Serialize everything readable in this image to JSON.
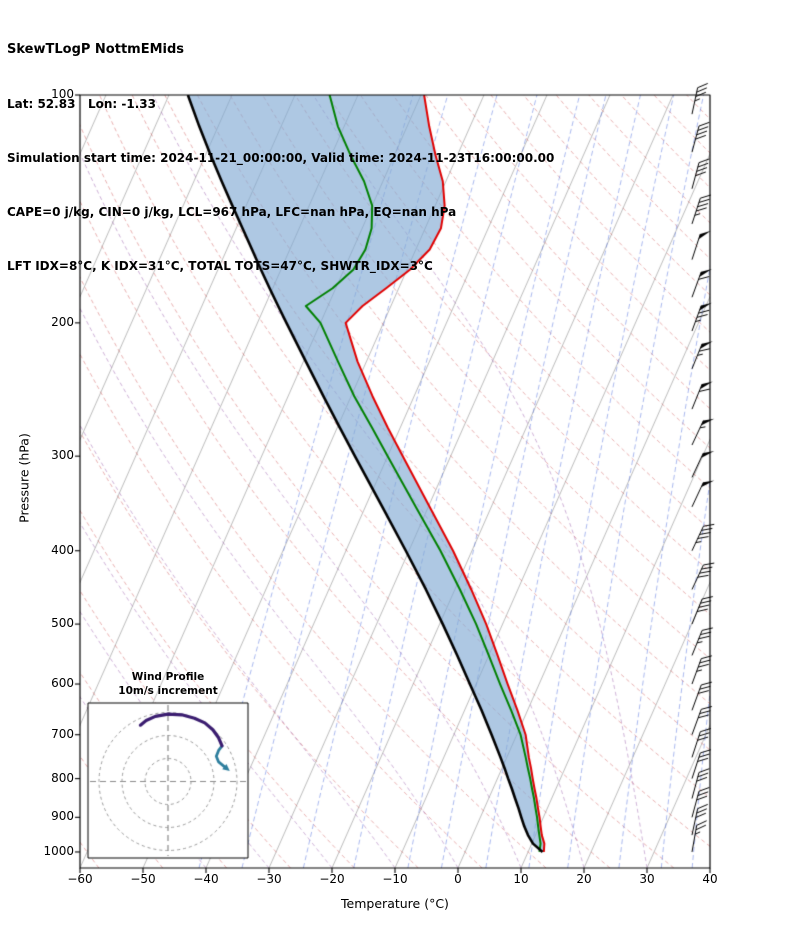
{
  "header": {
    "title": "SkewTLogP NottmEMids",
    "location": "Lat: 52.83   Lon: -1.33",
    "times": "Simulation start time: 2024-11-21_00:00:00, Valid time: 2024-11-23T16:00:00.00",
    "indices1": "CAPE=0 j/kg, CIN=0 j/kg, LCL=967 hPa, LFC=nan hPa, EQ=nan hPa",
    "indices2": "LFT IDX=8°C, K IDX=31°C, TOTAL TOTS=47°C, SHWTR_IDX=3°C"
  },
  "chart_data": {
    "type": "line",
    "subtype": "skew-t log-p sounding",
    "xlabel": "Temperature (°C)",
    "ylabel": "Pressure (hPa)",
    "xlim": [
      -60,
      40
    ],
    "p_top": 100,
    "p_bottom": 1050,
    "skew_c_per_decade": 53,
    "x_ticks": [
      -60,
      -50,
      -40,
      -30,
      -20,
      -10,
      0,
      10,
      20,
      30,
      40
    ],
    "y_ticks": [
      100,
      200,
      300,
      400,
      500,
      600,
      700,
      800,
      900,
      1000
    ],
    "isotherms_c": {
      "min": -150,
      "max": 40,
      "step": 10
    },
    "dry_adiabats_theta_c": {
      "min": -60,
      "max": 220,
      "step": 10
    },
    "moist_adiabat_starts_c": [
      -40,
      -30,
      -20,
      -10,
      0,
      10,
      20,
      30
    ],
    "mixing_ratios_g_kg": [
      0.1,
      0.2,
      0.5,
      1,
      2,
      3,
      5,
      8,
      12,
      20,
      30,
      40
    ],
    "sounding": {
      "pressure": [
        1000,
        975,
        950,
        925,
        900,
        875,
        850,
        825,
        800,
        775,
        750,
        700,
        650,
        600,
        550,
        500,
        450,
        400,
        350,
        300,
        275,
        250,
        225,
        200,
        190,
        180,
        170,
        160,
        150,
        140,
        130,
        120,
        110,
        100
      ],
      "temperature": [
        12.5,
        12.0,
        11.0,
        10.2,
        9.4,
        8.5,
        7.6,
        6.6,
        5.6,
        4.6,
        3.5,
        1.4,
        -1.6,
        -5.0,
        -8.6,
        -12.6,
        -17.4,
        -23.0,
        -29.8,
        -37.6,
        -42.0,
        -46.6,
        -51.4,
        -56.0,
        -54.5,
        -52.0,
        -49.5,
        -47.8,
        -47.5,
        -48.5,
        -50.5,
        -53.5,
        -56.5,
        -59.5
      ],
      "dewpoint": [
        11.8,
        11.4,
        10.6,
        9.8,
        9.0,
        8.1,
        7.2,
        6.2,
        5.2,
        4.1,
        3.0,
        0.6,
        -2.6,
        -6.2,
        -10.0,
        -14.2,
        -19.2,
        -25.0,
        -32.0,
        -40.0,
        -44.5,
        -49.5,
        -54.5,
        -60.0,
        -63.5,
        -60.5,
        -58.5,
        -58.0,
        -58.5,
        -60.0,
        -63.0,
        -67.0,
        -71.0,
        -74.5
      ],
      "parcel": [
        12.3,
        10.2,
        8.8,
        7.6,
        6.5,
        5.4,
        4.2,
        3.0,
        1.7,
        0.4,
        -1.0,
        -4.0,
        -7.3,
        -11.0,
        -15.0,
        -19.5,
        -24.6,
        -30.5,
        -37.3,
        -45.2,
        -49.6,
        -54.4,
        -59.6,
        -65.4,
        -67.9,
        -70.5,
        -73.2,
        -76.0,
        -79.0,
        -82.2,
        -85.6,
        -89.2,
        -93.0,
        -97.0
      ]
    },
    "wind_barbs": {
      "pressure": [
        1000,
        950,
        900,
        850,
        800,
        750,
        700,
        650,
        600,
        550,
        500,
        450,
        400,
        350,
        320,
        290,
        260,
        230,
        205,
        185,
        165,
        148,
        133,
        119,
        106
      ],
      "speed_kt": [
        25,
        28,
        30,
        30,
        28,
        28,
        30,
        32,
        35,
        35,
        40,
        40,
        45,
        48,
        50,
        55,
        60,
        65,
        75,
        60,
        50,
        45,
        40,
        38,
        35
      ],
      "direction_deg": [
        10,
        12,
        15,
        15,
        18,
        18,
        20,
        20,
        20,
        22,
        22,
        25,
        25,
        25,
        25,
        25,
        22,
        22,
        20,
        20,
        18,
        18,
        15,
        15,
        12
      ]
    },
    "hodograph": {
      "title": "Wind Profile",
      "subtitle": "10m/s increment",
      "rings_ms": [
        10,
        20,
        30
      ],
      "segments": [
        {
          "name": "low-level",
          "color": "#2e7f9e",
          "width": 2.8,
          "arrow_at_start": true,
          "u": [
            24.5,
            22.0,
            21.0,
            22.0,
            23.5
          ],
          "v": [
            6.5,
            8.5,
            11.0,
            13.5,
            15.5
          ]
        },
        {
          "name": "mid-upper",
          "color": "#3b1d70",
          "width": 3.2,
          "arrow_at_start": false,
          "u": [
            23.5,
            22.0,
            19.5,
            16.0,
            11.5,
            6.0,
            0.0,
            -5.5,
            -9.5,
            -12.0
          ],
          "v": [
            15.5,
            19.0,
            22.5,
            25.5,
            27.5,
            29.0,
            29.3,
            28.3,
            26.5,
            24.5
          ]
        }
      ]
    },
    "colors": {
      "temperature": "#e00000",
      "dewpoint": "#008000",
      "parcel": "#000000",
      "cin_shade": "rgba(132,172,212,0.66)",
      "isotherm": "#b3b3b3",
      "dry_adiabat": "rgba(205,80,80,0.5)",
      "moist_adiabat": "rgba(150,90,170,0.55)",
      "mixing_ratio": "rgba(80,110,220,0.55)",
      "barb": "#000000",
      "hodo_ring": "#9a9a9a",
      "hodo_cross": "#8a8a8a"
    }
  }
}
